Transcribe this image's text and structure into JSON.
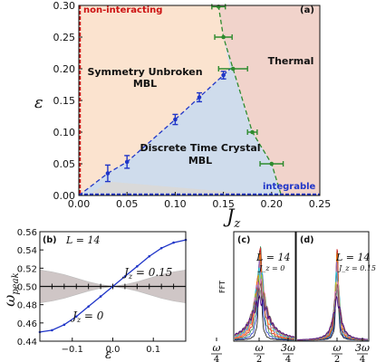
{
  "chart_data": [
    {
      "panel": "(a)",
      "type": "scatter",
      "xlabel": "J_z",
      "ylabel": "ε",
      "xlim": [
        0,
        0.25
      ],
      "ylim": [
        0,
        0.3
      ],
      "x_ticks": [
        "0.00",
        "0.05",
        "0.10",
        "0.15",
        "0.20",
        "0.25"
      ],
      "y_ticks": [
        "0.00",
        "0.05",
        "0.10",
        "0.15",
        "0.20",
        "0.25",
        "0.30"
      ],
      "regions": [
        {
          "label_lines": [
            "Symmetry Unbroken",
            "MBL"
          ],
          "color": "#fbe3cf"
        },
        {
          "label_lines": [
            "Thermal"
          ],
          "color": "#f1d3cb"
        },
        {
          "label_lines": [
            "Discrete Time Crystal",
            "MBL"
          ],
          "color": "#cfdcec"
        }
      ],
      "annotations": {
        "non_interacting": "non-interacting",
        "integrable": "integrable"
      },
      "series": [
        {
          "color": "#1f35c8",
          "points": [
            {
              "x": 0.03,
              "y": 0.035,
              "yerr": 0.013
            },
            {
              "x": 0.05,
              "y": 0.053,
              "yerr": 0.01
            },
            {
              "x": 0.1,
              "y": 0.12,
              "yerr": 0.008
            },
            {
              "x": 0.125,
              "y": 0.155,
              "yerr": 0.007
            },
            {
              "x": 0.15,
              "y": 0.19,
              "yerr": 0.006
            }
          ]
        },
        {
          "color": "#2e8b2e",
          "points": [
            {
              "x": 0.145,
              "y": 0.298,
              "xerr": 0.007
            },
            {
              "x": 0.15,
              "y": 0.25,
              "xerr": 0.009
            },
            {
              "x": 0.16,
              "y": 0.2,
              "xerr": 0.015
            },
            {
              "x": 0.18,
              "y": 0.1,
              "xerr": 0.005
            },
            {
              "x": 0.2,
              "y": 0.05,
              "xerr": 0.012
            }
          ]
        }
      ]
    },
    {
      "panel": "(b)",
      "type": "line",
      "xlabel": "ε",
      "ylabel": "ω_peak",
      "xlim": [
        -0.18,
        0.18
      ],
      "ylim": [
        0.44,
        0.56
      ],
      "x_ticks": [
        "−0.1",
        "0.0",
        "0.1"
      ],
      "y_ticks": [
        "0.44",
        "0.46",
        "0.48",
        "0.50",
        "0.52",
        "0.54",
        "0.56"
      ],
      "L_label": "L = 14",
      "series": [
        {
          "name": "J_z = 0",
          "color": "#1f35c8",
          "x": [
            -0.18,
            -0.15,
            -0.12,
            -0.09,
            -0.06,
            -0.03,
            0.0,
            0.03,
            0.06,
            0.09,
            0.12,
            0.15,
            0.18
          ],
          "y": [
            0.45,
            0.452,
            0.458,
            0.467,
            0.478,
            0.489,
            0.5,
            0.511,
            0.522,
            0.533,
            0.542,
            0.548,
            0.551
          ]
        },
        {
          "name": "J_z = 0.15",
          "color": "#111111",
          "x": [
            -0.18,
            -0.15,
            -0.12,
            -0.09,
            -0.06,
            -0.03,
            0.0,
            0.03,
            0.06,
            0.09,
            0.12,
            0.15,
            0.18
          ],
          "y": [
            0.5,
            0.5,
            0.5,
            0.5,
            0.5,
            0.5,
            0.5,
            0.5,
            0.5,
            0.5,
            0.5,
            0.5,
            0.5
          ],
          "band": [
            0.018,
            0.016,
            0.013,
            0.009,
            0.005,
            0.002,
            0.0,
            0.002,
            0.005,
            0.009,
            0.013,
            0.016,
            0.018
          ]
        }
      ]
    },
    {
      "panel": "(c)",
      "type": "line",
      "ylabel": "FFT",
      "x_ticks": [
        "ω/4",
        "ω/2",
        "3ω/4"
      ],
      "labels": [
        "L = 14",
        "J_z = 0"
      ]
    },
    {
      "panel": "(d)",
      "type": "line",
      "x_ticks": [
        "ω/4",
        "ω/2",
        "3ω/4"
      ],
      "labels": [
        "L = 14",
        "J_z = 0.15"
      ]
    }
  ]
}
